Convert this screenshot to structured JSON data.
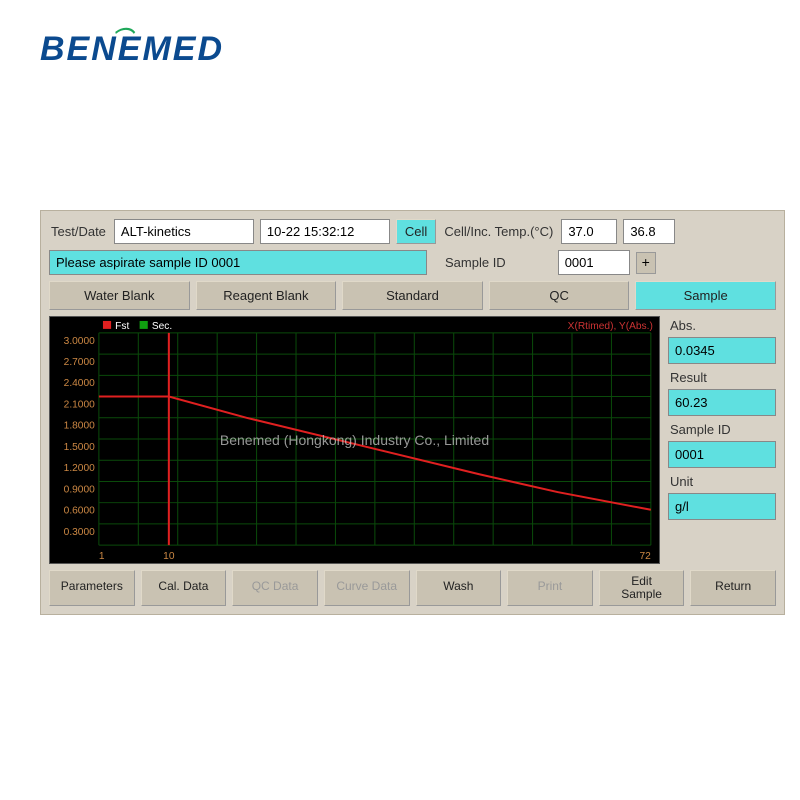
{
  "logo": "BENEMED",
  "watermark": "Benemed (Hongkong) Industry Co., Limited",
  "header": {
    "test_date_label": "Test/Date",
    "test_name": "ALT-kinetics",
    "datetime": "10-22  15:32:12",
    "cell_btn": "Cell",
    "temp_label": "Cell/Inc. Temp.(°C)",
    "temp1": "37.0",
    "temp2": "36.8"
  },
  "status": {
    "message": "Please aspirate sample ID 0001",
    "sample_id_label": "Sample ID",
    "sample_id": "0001",
    "plus": "+"
  },
  "tabs": {
    "water_blank": "Water Blank",
    "reagent_blank": "Reagent Blank",
    "standard": "Standard",
    "qc": "QC",
    "sample": "Sample"
  },
  "chart": {
    "legend_fst": "Fst",
    "legend_sec": "Sec.",
    "corner": "X(Rtimed), Y(Abs.)",
    "x_min": 1,
    "x_max": 72,
    "x_vline": 10,
    "y_ticks": [
      "3.0000",
      "2.7000",
      "2.4000",
      "2.1000",
      "1.8000",
      "1.5000",
      "1.2000",
      "0.9000",
      "0.6000",
      "0.3000"
    ],
    "x_ticks": [
      "1",
      "10",
      "72"
    ],
    "curve": [
      {
        "x": 1,
        "y": 2.1
      },
      {
        "x": 10,
        "y": 2.1
      },
      {
        "x": 20,
        "y": 1.8
      },
      {
        "x": 35,
        "y": 1.4
      },
      {
        "x": 50,
        "y": 1.0
      },
      {
        "x": 60,
        "y": 0.75
      },
      {
        "x": 72,
        "y": 0.5
      }
    ],
    "colors": {
      "bg": "#000000",
      "grid": "#0a4a0a",
      "axis": "#cc8844",
      "curve": "#e02020",
      "legend_fst": "#e02020",
      "legend_sec": "#10a010"
    }
  },
  "side": {
    "abs_label": "Abs.",
    "abs": "0.0345",
    "result_label": "Result",
    "result": "60.23",
    "sample_id_label": "Sample ID",
    "sample_id": "0001",
    "unit_label": "Unit",
    "unit": "g/l"
  },
  "bottom": {
    "parameters": "Parameters",
    "cal_data": "Cal. Data",
    "qc_data": "QC Data",
    "curve_data": "Curve Data",
    "wash": "Wash",
    "print": "Print",
    "edit_sample": "Edit\nSample",
    "return": "Return"
  }
}
